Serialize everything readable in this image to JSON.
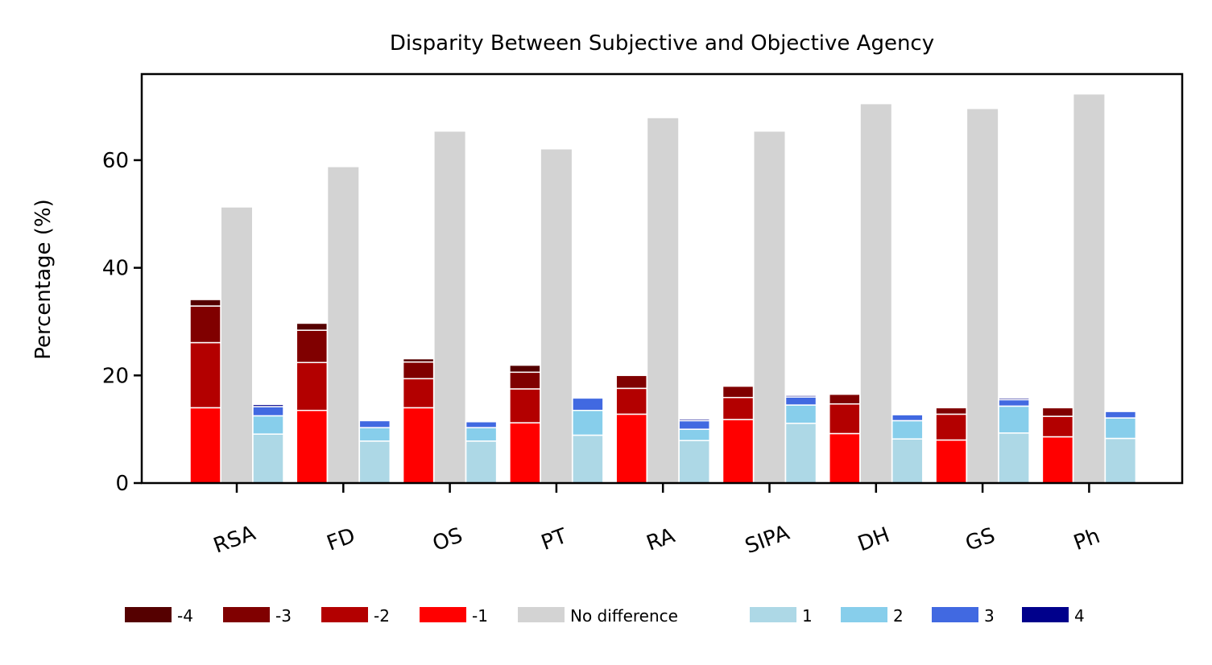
{
  "chart_data": {
    "type": "bar",
    "title": "Disparity Between Subjective and Objective Agency",
    "xlabel": "",
    "ylabel": "Percentage (%)",
    "ylim": [
      0,
      76
    ],
    "yticks": [
      0,
      20,
      40,
      60
    ],
    "grid": false,
    "legend_placement": "bottom",
    "categories": [
      "RSA",
      "FD",
      "OS",
      "PT",
      "RA",
      "SIPA",
      "DH",
      "GS",
      "Ph"
    ],
    "negative_stack": [
      {
        "name": "-1",
        "color": "#ff0000",
        "values": [
          14,
          13.5,
          14,
          11.2,
          12.8,
          11.8,
          9.2,
          8,
          8.6
        ]
      },
      {
        "name": "-2",
        "color": "#b30000",
        "values": [
          12.1,
          8.9,
          5.4,
          6.3,
          4.8,
          4.1,
          5.5,
          4.8,
          3.8
        ]
      },
      {
        "name": "-3",
        "color": "#800000",
        "values": [
          6.8,
          6.0,
          3.1,
          3.1,
          2.4,
          2.1,
          1.8,
          1.2,
          1.6
        ]
      },
      {
        "name": "-4",
        "color": "#550000",
        "values": [
          1.2,
          1.3,
          0.6,
          1.3,
          0,
          0,
          0,
          0,
          0
        ]
      }
    ],
    "neutral": {
      "name": "No difference",
      "color": "#d3d3d3",
      "values": [
        51.2,
        58.7,
        65.3,
        62.0,
        67.8,
        65.3,
        70.4,
        69.5,
        72.2
      ]
    },
    "positive_stack": [
      {
        "name": "1",
        "color": "#add8e6",
        "values": [
          9.1,
          7.8,
          7.8,
          8.9,
          7.9,
          11.1,
          8.2,
          9.3,
          8.3
        ]
      },
      {
        "name": "2",
        "color": "#87ceeb",
        "values": [
          3.4,
          2.5,
          2.5,
          4.6,
          2.1,
          3.4,
          3.4,
          5.0,
          3.8
        ]
      },
      {
        "name": "3",
        "color": "#4169e1",
        "values": [
          1.7,
          1.3,
          1.1,
          2.3,
          1.6,
          1.5,
          1.1,
          1.2,
          1.2
        ]
      },
      {
        "name": "4",
        "color": "#00008b",
        "values": [
          0.4,
          0,
          0,
          0,
          0.3,
          0.3,
          0,
          0.3,
          0
        ]
      }
    ],
    "legend": [
      {
        "label": "-4",
        "color": "#550000"
      },
      {
        "label": "-3",
        "color": "#800000"
      },
      {
        "label": "-2",
        "color": "#b30000"
      },
      {
        "label": "-1",
        "color": "#ff0000"
      },
      {
        "label": "No difference",
        "color": "#d3d3d3"
      },
      {
        "label": "1",
        "color": "#add8e6"
      },
      {
        "label": "2",
        "color": "#87ceeb"
      },
      {
        "label": "3",
        "color": "#4169e1"
      },
      {
        "label": "4",
        "color": "#00008b"
      }
    ]
  }
}
